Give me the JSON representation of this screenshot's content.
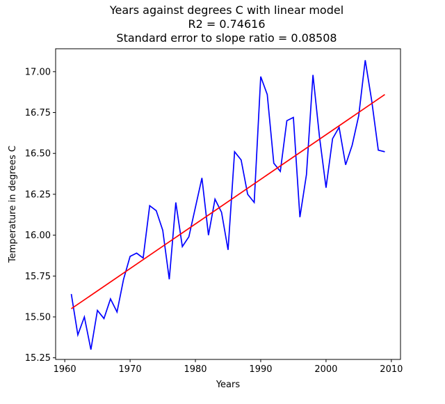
{
  "chart_data": {
    "type": "line",
    "title_lines": [
      "Years against degrees C with linear model",
      "R2 = 0.74616",
      "Standard error to slope ratio = 0.08508"
    ],
    "xlabel": "Years",
    "ylabel": "Temperature in degrees C",
    "xlim": [
      1958.6,
      2011.4
    ],
    "ylim": [
      15.24,
      17.14
    ],
    "x_ticks": [
      1960,
      1970,
      1980,
      1990,
      2000,
      2010
    ],
    "y_ticks": [
      15.25,
      15.5,
      15.75,
      16.0,
      16.25,
      16.5,
      16.75,
      17.0
    ],
    "y_tick_labels": [
      "15.25",
      "15.50",
      "15.75",
      "16.00",
      "16.25",
      "16.50",
      "16.75",
      "17.00"
    ],
    "grid": false,
    "series": [
      {
        "color": "#0000ff",
        "x": [
          1961,
          1962,
          1963,
          1964,
          1965,
          1966,
          1967,
          1968,
          1969,
          1970,
          1971,
          1972,
          1973,
          1974,
          1975,
          1976,
          1977,
          1978,
          1979,
          1980,
          1981,
          1982,
          1983,
          1984,
          1985,
          1986,
          1987,
          1988,
          1989,
          1990,
          1991,
          1992,
          1993,
          1994,
          1995,
          1996,
          1997,
          1998,
          1999,
          2000,
          2001,
          2002,
          2003,
          2004,
          2005,
          2006,
          2007,
          2008,
          2009
        ],
        "values": [
          15.64,
          15.39,
          15.5,
          15.3,
          15.54,
          15.49,
          15.61,
          15.53,
          15.73,
          15.87,
          15.89,
          15.86,
          16.18,
          16.15,
          16.03,
          15.73,
          16.2,
          15.93,
          15.99,
          16.17,
          16.35,
          16.0,
          16.22,
          16.14,
          15.91,
          16.51,
          16.46,
          16.25,
          16.2,
          16.97,
          16.86,
          16.44,
          16.39,
          16.7,
          16.72,
          16.11,
          16.37,
          16.98,
          16.6,
          16.29,
          16.59,
          16.66,
          16.43,
          16.55,
          16.73,
          17.07,
          16.82,
          16.52,
          16.51
        ]
      },
      {
        "color": "#ff0000",
        "x": [
          1961,
          2009
        ],
        "values": [
          15.55,
          16.86
        ]
      }
    ]
  }
}
